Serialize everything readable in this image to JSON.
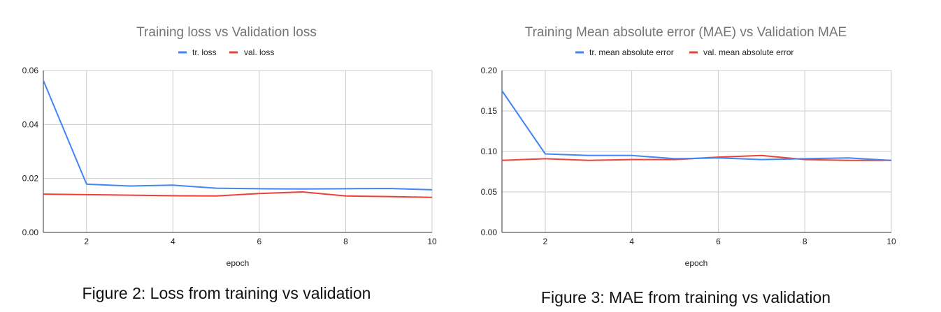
{
  "chart_data": [
    {
      "type": "line",
      "title": "Training loss vs Validation loss",
      "xlabel": "epoch",
      "ylabel": "",
      "x": [
        1,
        2,
        3,
        4,
        5,
        6,
        7,
        8,
        9,
        10
      ],
      "xlim": [
        1,
        10
      ],
      "ylim": [
        0,
        0.06
      ],
      "xticks": [
        "2",
        "4",
        "6",
        "8",
        "10"
      ],
      "yticks": [
        "0.00",
        "0.02",
        "0.04",
        "0.06"
      ],
      "series": [
        {
          "name": "tr. loss",
          "color": "#4285f4",
          "values": [
            0.0563,
            0.0179,
            0.0172,
            0.0175,
            0.0164,
            0.0162,
            0.0161,
            0.0162,
            0.0163,
            0.0158
          ]
        },
        {
          "name": "val. loss",
          "color": "#ea4335",
          "values": [
            0.0142,
            0.014,
            0.0138,
            0.0136,
            0.0135,
            0.0144,
            0.015,
            0.0135,
            0.0133,
            0.013
          ]
        }
      ],
      "legend_position": "top",
      "grid": true,
      "caption": "Figure 2: Loss from training vs validation"
    },
    {
      "type": "line",
      "title": "Training Mean absolute error (MAE) vs Validation MAE",
      "xlabel": "epoch",
      "ylabel": "",
      "x": [
        1,
        2,
        3,
        4,
        5,
        6,
        7,
        8,
        9,
        10
      ],
      "xlim": [
        1,
        10
      ],
      "ylim": [
        0,
        0.2
      ],
      "xticks": [
        "2",
        "4",
        "6",
        "8",
        "10"
      ],
      "yticks": [
        "0.00",
        "0.05",
        "0.10",
        "0.15",
        "0.20"
      ],
      "series": [
        {
          "name": "tr. mean absolute error",
          "color": "#4285f4",
          "values": [
            0.175,
            0.097,
            0.095,
            0.095,
            0.091,
            0.092,
            0.09,
            0.091,
            0.092,
            0.089
          ]
        },
        {
          "name": "val. mean absolute error",
          "color": "#ea4335",
          "values": [
            0.089,
            0.091,
            0.089,
            0.09,
            0.09,
            0.093,
            0.095,
            0.09,
            0.089,
            0.089
          ]
        }
      ],
      "legend_position": "top",
      "grid": true,
      "caption": "Figure 3: MAE from training vs validation"
    }
  ]
}
